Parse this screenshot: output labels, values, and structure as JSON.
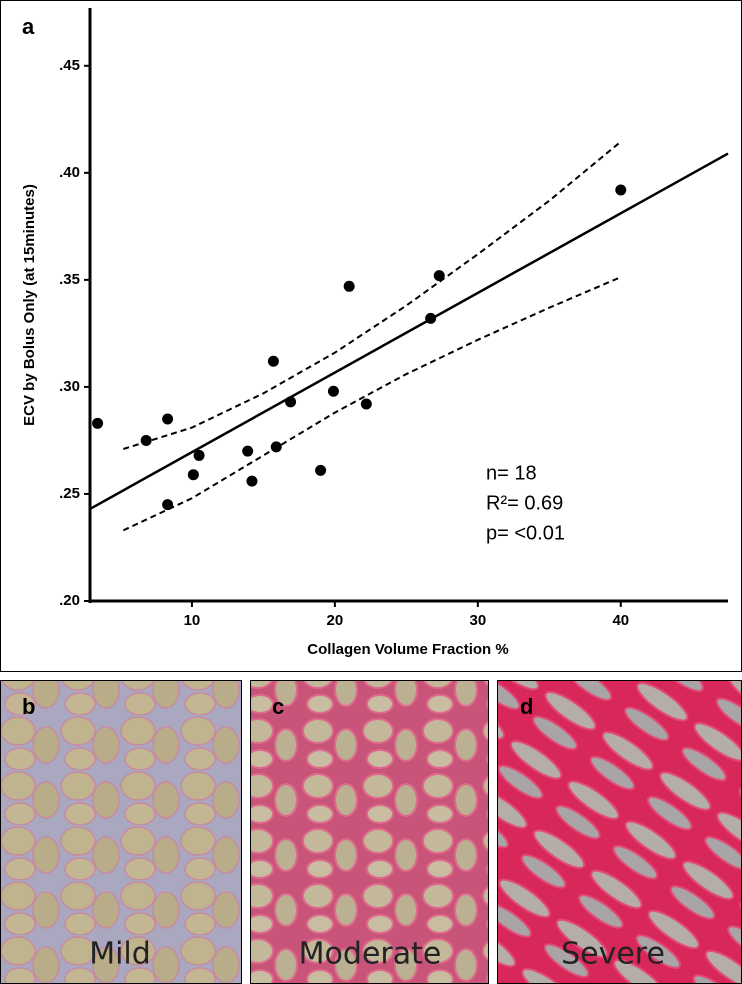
{
  "chart_data": {
    "type": "scatter",
    "panel_label": "a",
    "x_label": "Collagen Volume Fraction %",
    "y_label": "ECV by Bolus Only (at 15minutes)",
    "xlim": [
      2.87,
      47.5
    ],
    "ylim": [
      0.2,
      0.477
    ],
    "xticks": [
      10,
      20,
      30,
      40
    ],
    "yticks": [
      {
        "value": 0.2,
        "label": ".20"
      },
      {
        "value": 0.25,
        "label": ".25"
      },
      {
        "value": 0.3,
        "label": ".30"
      },
      {
        "value": 0.35,
        "label": ".35"
      },
      {
        "value": 0.4,
        "label": ".40"
      },
      {
        "value": 0.45,
        "label": ".45"
      }
    ],
    "series": [
      {
        "mode": "points",
        "color": "#000000",
        "x": [
          3.4,
          6.8,
          8.3,
          8.3,
          10.5,
          10.1,
          13.9,
          14.2,
          15.7,
          15.9,
          16.9,
          19.9,
          19.0,
          21.0,
          22.2,
          26.7,
          27.3,
          40.0
        ],
        "values": [
          0.283,
          0.275,
          0.285,
          0.245,
          0.268,
          0.259,
          0.27,
          0.256,
          0.312,
          0.272,
          0.293,
          0.298,
          0.261,
          0.347,
          0.292,
          0.332,
          0.352,
          0.392
        ]
      },
      {
        "mode": "solid",
        "color": "#000000",
        "x": [
          2.87,
          47.5
        ],
        "values": [
          0.243,
          0.409
        ]
      },
      {
        "mode": "dashed",
        "color": "#000000",
        "x": [
          5.2,
          10,
          15,
          20,
          25,
          30,
          35,
          39.9
        ],
        "values": [
          0.271,
          0.281,
          0.297,
          0.316,
          0.338,
          0.362,
          0.387,
          0.414
        ]
      },
      {
        "mode": "dashed",
        "color": "#000000",
        "x": [
          5.2,
          10,
          15,
          20,
          25,
          30,
          35,
          39.9
        ],
        "values": [
          0.233,
          0.248,
          0.268,
          0.288,
          0.306,
          0.322,
          0.337,
          0.351
        ]
      }
    ],
    "annotations": [
      "n= 18",
      "R²= 0.69",
      "p= <0.01"
    ]
  },
  "panels": [
    {
      "letter": "b",
      "label": "Mild"
    },
    {
      "letter": "c",
      "label": "Moderate"
    },
    {
      "letter": "d",
      "label": "Severe"
    }
  ]
}
